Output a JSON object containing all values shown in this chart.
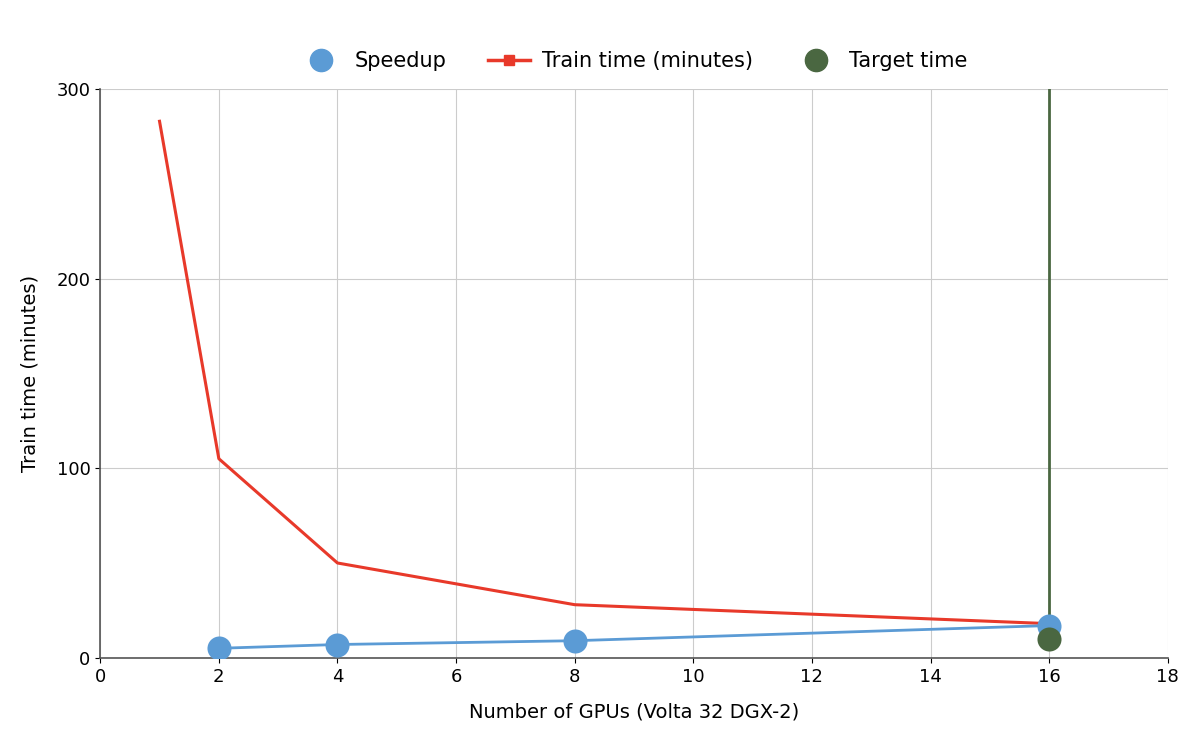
{
  "title": "",
  "xlabel": "Number of GPUs (Volta 32 DGX-2)",
  "ylabel": "Train time (minutes)",
  "xlim": [
    0,
    18
  ],
  "ylim": [
    0,
    300
  ],
  "xticks": [
    0,
    2,
    4,
    6,
    8,
    10,
    12,
    14,
    16,
    18
  ],
  "yticks": [
    0,
    100,
    200,
    300
  ],
  "train_time_gpus": [
    1,
    2,
    4,
    8,
    16
  ],
  "train_time_values": [
    283,
    105,
    50,
    28,
    18
  ],
  "speedup_gpus": [
    2,
    4,
    8,
    16
  ],
  "speedup_values": [
    5,
    7,
    9,
    17
  ],
  "target_gpu": 16,
  "target_time_top": 300,
  "target_time_bottom": 10,
  "train_time_color": "#e8392a",
  "speedup_color": "#5b9bd5",
  "target_color": "#4a6741",
  "background_color": "#ffffff",
  "grid_color": "#cccccc",
  "legend_labels": [
    "Speedup",
    "Train time (minutes)",
    "Target time"
  ],
  "speedup_marker_size": 300,
  "target_marker_size": 300,
  "train_time_linewidth": 2.2,
  "target_linewidth": 2.0,
  "speedup_linewidth": 2.0,
  "legend_fontsize": 15,
  "axis_label_fontsize": 14,
  "tick_fontsize": 13
}
